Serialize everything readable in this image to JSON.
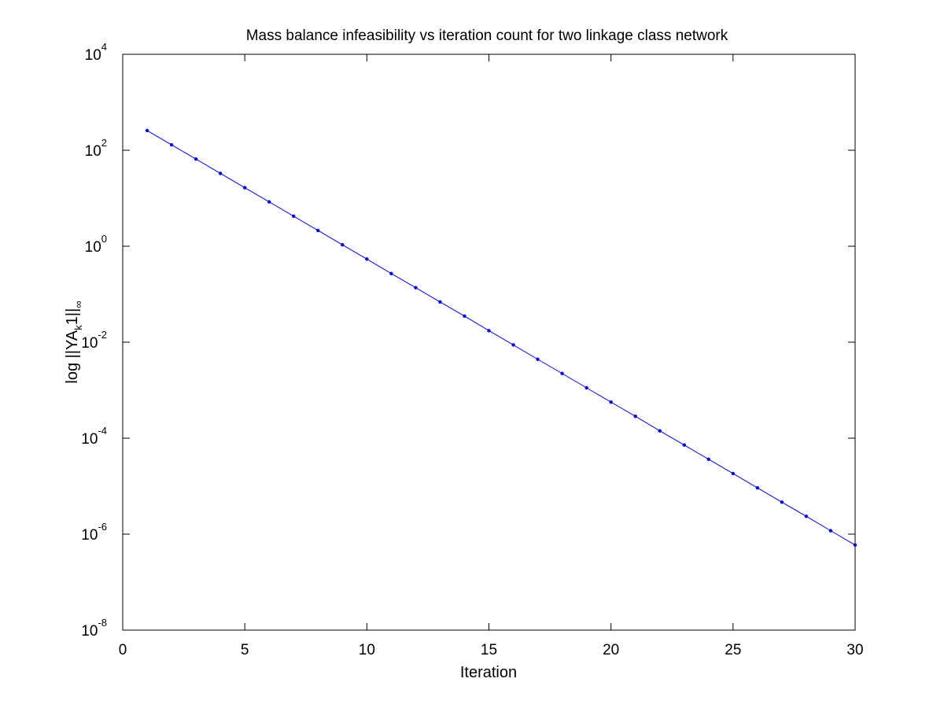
{
  "chart_data": {
    "type": "line",
    "title": "Mass balance infeasibility vs iteration count for two linkage class network",
    "xlabel": "Iteration",
    "ylabel": {
      "prefix": "log ||YA",
      "sub1": "k",
      "mid": "1||",
      "sub2": "∞"
    },
    "xlim": [
      0,
      30
    ],
    "ylim": [
      1e-08,
      10000
    ],
    "yscale": "log",
    "grid": false,
    "legend": "none",
    "x_ticks": [
      "0",
      "5",
      "10",
      "15",
      "20",
      "25",
      "30"
    ],
    "y_ticks": [
      {
        "base": "10",
        "exp": "-8"
      },
      {
        "base": "10",
        "exp": "-6"
      },
      {
        "base": "10",
        "exp": "-4"
      },
      {
        "base": "10",
        "exp": "-2"
      },
      {
        "base": "10",
        "exp": "0"
      },
      {
        "base": "10",
        "exp": "2"
      },
      {
        "base": "10",
        "exp": "4"
      }
    ],
    "series": [
      {
        "color": "#0000ff",
        "marker": "dot",
        "x": [
          1,
          2,
          3,
          4,
          5,
          6,
          7,
          8,
          9,
          10,
          11,
          12,
          13,
          14,
          15,
          16,
          17,
          18,
          19,
          20,
          21,
          22,
          23,
          24,
          25,
          26,
          27,
          28,
          29,
          30
        ],
        "y": [
          257.7,
          129.8,
          65.5,
          32.9,
          16.6,
          8.4,
          4.22,
          2.13,
          1.07,
          0.54,
          0.27,
          0.137,
          0.069,
          0.035,
          0.0174,
          0.0088,
          0.0044,
          0.00223,
          0.00112,
          0.000565,
          0.000286,
          0.000142,
          7.21e-05,
          3.63e-05,
          1.83e-05,
          9.2e-06,
          4.65e-06,
          2.35e-06,
          1.18e-06,
          5.94e-07
        ]
      }
    ]
  }
}
